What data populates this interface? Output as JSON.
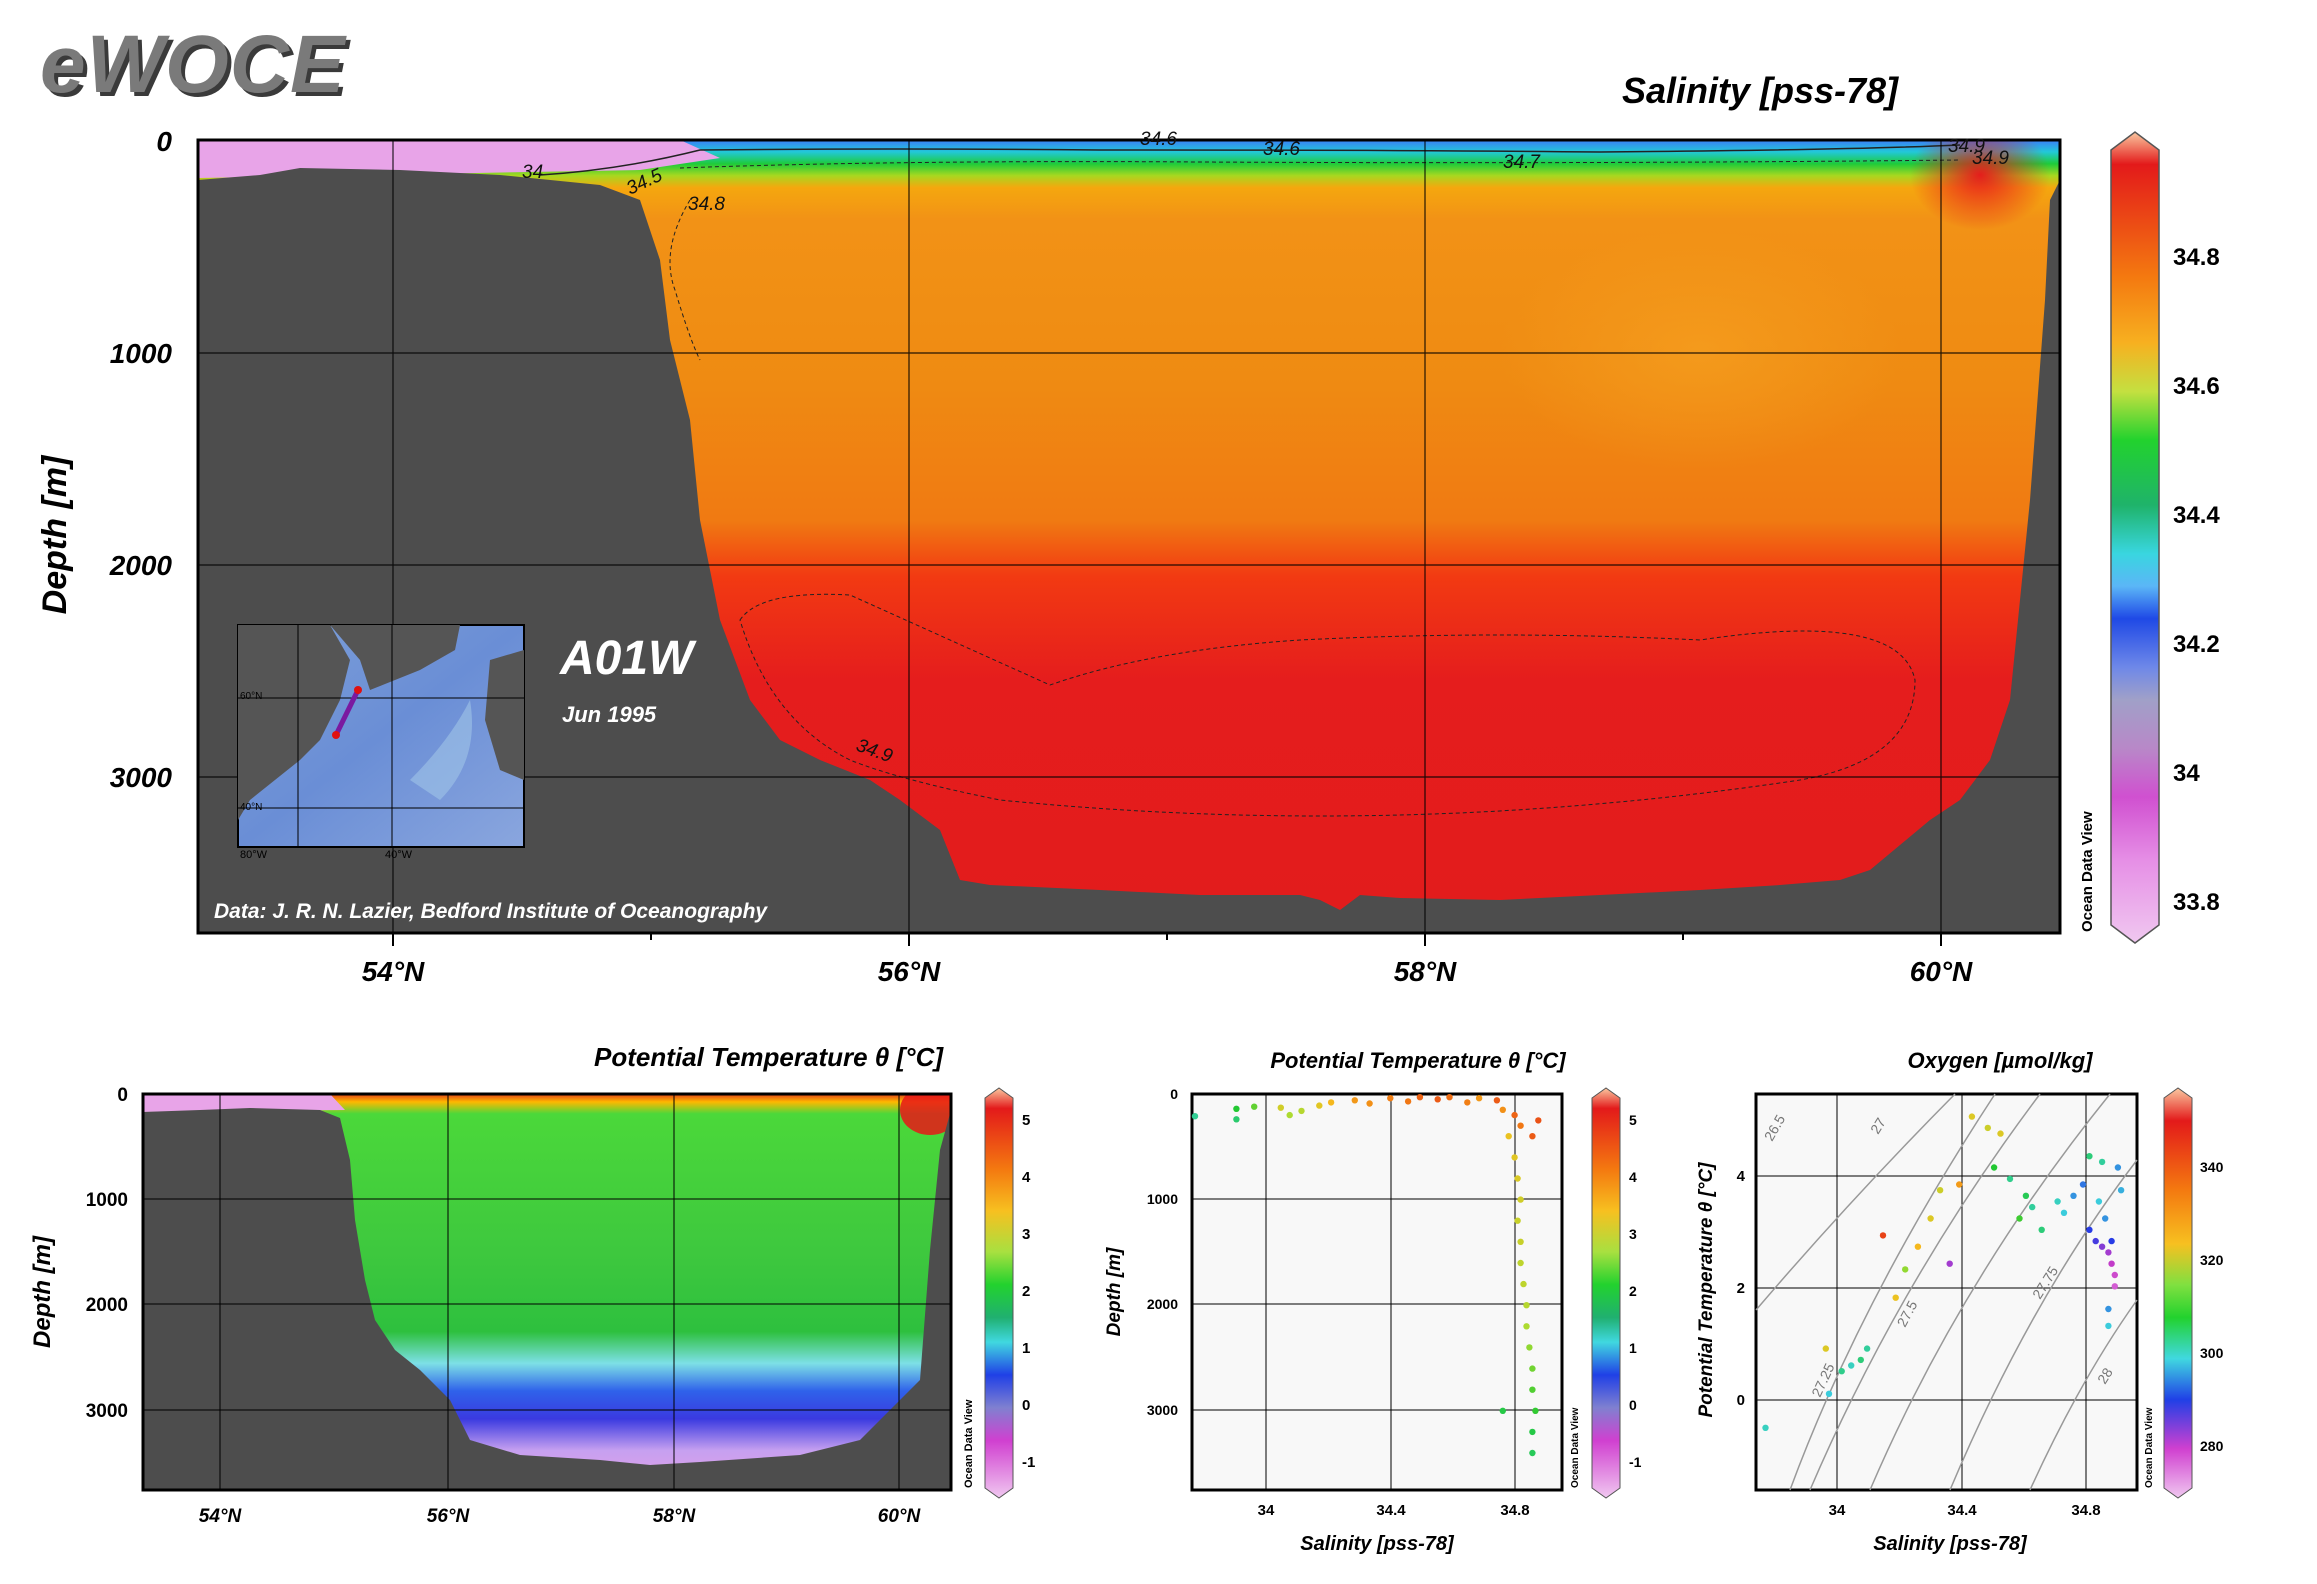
{
  "brand": "eWOCE",
  "colors": {
    "land": "#4d4d4d",
    "plot_bg": "#f8f8f8"
  },
  "main_section": {
    "title": "Salinity [pss-78]",
    "ylabel": "Depth [m]",
    "y_ticks": [
      "0",
      "1000",
      "2000",
      "3000"
    ],
    "x_ticks": [
      "54°N",
      "56°N",
      "58°N",
      "60°N"
    ],
    "section_label": "A01W",
    "section_date": "Jun 1995",
    "credit": "Data: J. R. N. Lazier, Bedford Institute of Oceanography",
    "contour_labels": [
      "34",
      "34.5",
      "34.6",
      "34.7",
      "34.8",
      "34.9",
      "34.9",
      "34.6",
      "34.9"
    ],
    "colorbar_ticks": [
      "34.8",
      "34.6",
      "34.4",
      "34.2",
      "34",
      "33.8"
    ],
    "watermark": "Ocean Data View",
    "inset_map": {
      "lat_labels": [
        "60°N",
        "40°N"
      ],
      "lon_labels": [
        "80°W",
        "40°W"
      ]
    }
  },
  "theta_section": {
    "title": "Potential Temperature θ [°C]",
    "ylabel": "Depth [m]",
    "y_ticks": [
      "0",
      "1000",
      "2000",
      "3000"
    ],
    "x_ticks": [
      "54°N",
      "56°N",
      "58°N",
      "60°N"
    ],
    "colorbar_ticks": [
      "5",
      "4",
      "3",
      "2",
      "1",
      "0",
      "-1"
    ],
    "watermark": "Ocean Data View"
  },
  "profile_plot": {
    "title": "Potential Temperature θ [°C]",
    "ylabel": "Depth [m]",
    "xlabel": "Salinity [pss-78]",
    "y_ticks": [
      "0",
      "1000",
      "2000",
      "3000"
    ],
    "x_ticks": [
      "34",
      "34.4",
      "34.8"
    ],
    "colorbar_ticks": [
      "5",
      "4",
      "3",
      "2",
      "1",
      "0",
      "-1"
    ],
    "watermark": "Ocean Data View"
  },
  "ts_plot": {
    "title": "Oxygen [µmol/kg]",
    "ylabel": "Potential Temperature θ [°C]",
    "xlabel": "Salinity [pss-78]",
    "y_ticks": [
      "4",
      "2",
      "0"
    ],
    "x_ticks": [
      "34",
      "34.4",
      "34.8"
    ],
    "isopycnal_labels": [
      "26.5",
      "27",
      "27.25",
      "27.5",
      "27.75",
      "28"
    ],
    "colorbar_ticks": [
      "340",
      "320",
      "300",
      "280"
    ],
    "watermark": "Ocean Data View"
  },
  "chart_data": [
    {
      "type": "heatmap",
      "title": "Salinity [pss-78]",
      "xlabel": "",
      "ylabel": "Depth [m]",
      "xlim": [
        53.3,
        60.5
      ],
      "ylim": [
        3750,
        0
      ],
      "x_ticks": [
        54,
        56,
        58,
        60
      ],
      "y_ticks": [
        0,
        1000,
        2000,
        3000
      ],
      "colorbar": {
        "min": 33.7,
        "max": 35.0,
        "ticks": [
          34.8,
          34.6,
          34.4,
          34.2,
          34,
          33.8
        ]
      },
      "contours": [
        34,
        34.5,
        34.6,
        34.7,
        34.8,
        34.9
      ]
    },
    {
      "type": "heatmap",
      "title": "Potential Temperature θ [°C]",
      "xlabel": "",
      "ylabel": "Depth [m]",
      "xlim": [
        53.3,
        60.5
      ],
      "ylim": [
        3750,
        0
      ],
      "x_ticks": [
        54,
        56,
        58,
        60
      ],
      "y_ticks": [
        0,
        1000,
        2000,
        3000
      ],
      "colorbar": {
        "min": -1.6,
        "max": 5.6,
        "ticks": [
          5,
          4,
          3,
          2,
          1,
          0,
          -1
        ]
      }
    },
    {
      "type": "scatter",
      "title": "Potential Temperature θ [°C]",
      "xlabel": "Salinity [pss-78]",
      "ylabel": "Depth [m]",
      "xlim": [
        33.75,
        35.0
      ],
      "ylim": [
        3750,
        0
      ],
      "color_variable": "Potential Temperature θ [°C]",
      "points": [
        [
          33.76,
          210,
          1.5
        ],
        [
          33.9,
          140,
          2.0
        ],
        [
          33.9,
          240,
          1.7
        ],
        [
          33.96,
          120,
          2.4
        ],
        [
          34.05,
          130,
          3.3
        ],
        [
          34.08,
          200,
          2.9
        ],
        [
          34.12,
          160,
          3.0
        ],
        [
          34.18,
          110,
          3.5
        ],
        [
          34.22,
          80,
          3.8
        ],
        [
          34.3,
          60,
          4.2
        ],
        [
          34.35,
          90,
          4.3
        ],
        [
          34.42,
          40,
          4.5
        ],
        [
          34.48,
          70,
          4.6
        ],
        [
          34.52,
          30,
          4.8
        ],
        [
          34.58,
          50,
          4.9
        ],
        [
          34.62,
          30,
          4.7
        ],
        [
          34.68,
          80,
          4.5
        ],
        [
          34.72,
          40,
          4.2
        ],
        [
          34.78,
          60,
          4.9
        ],
        [
          34.8,
          150,
          4.3
        ],
        [
          34.84,
          200,
          4.8
        ],
        [
          34.86,
          300,
          4.6
        ],
        [
          34.9,
          400,
          4.9
        ],
        [
          34.92,
          250,
          5.0
        ],
        [
          34.82,
          400,
          3.6
        ],
        [
          34.84,
          600,
          3.5
        ],
        [
          34.85,
          800,
          3.4
        ],
        [
          34.86,
          1000,
          3.3
        ],
        [
          34.85,
          1200,
          3.2
        ],
        [
          34.86,
          1400,
          3.2
        ],
        [
          34.86,
          1600,
          3.1
        ],
        [
          34.87,
          1800,
          3.1
        ],
        [
          34.88,
          2000,
          3.0
        ],
        [
          34.88,
          2200,
          2.9
        ],
        [
          34.89,
          2400,
          2.7
        ],
        [
          34.9,
          2600,
          2.5
        ],
        [
          34.9,
          2800,
          2.3
        ],
        [
          34.91,
          3000,
          2.1
        ],
        [
          34.9,
          3200,
          1.9
        ],
        [
          34.9,
          3400,
          1.8
        ],
        [
          34.8,
          3000,
          1.9
        ]
      ]
    },
    {
      "type": "scatter",
      "title": "Oxygen [µmol/kg]",
      "xlabel": "Salinity [pss-78]",
      "ylabel": "Potential Temperature θ [°C]",
      "xlim": [
        33.75,
        34.95
      ],
      "ylim": [
        -1.6,
        5.4
      ],
      "color_variable": "Oxygen [µmol/kg]",
      "points": [
        [
          33.78,
          -0.5,
          302
        ],
        [
          33.98,
          0.1,
          300
        ],
        [
          34.02,
          0.5,
          305
        ],
        [
          34.05,
          0.6,
          302
        ],
        [
          34.08,
          0.7,
          306
        ],
        [
          34.1,
          0.9,
          304
        ],
        [
          33.97,
          0.9,
          326
        ],
        [
          34.15,
          2.9,
          345
        ],
        [
          34.19,
          1.8,
          328
        ],
        [
          34.22,
          2.3,
          318
        ],
        [
          34.26,
          2.7,
          330
        ],
        [
          34.3,
          3.2,
          326
        ],
        [
          34.33,
          3.7,
          324
        ],
        [
          34.39,
          3.8,
          334
        ],
        [
          34.36,
          2.4,
          282
        ],
        [
          34.43,
          5.0,
          326
        ],
        [
          34.48,
          4.8,
          324
        ],
        [
          34.52,
          4.7,
          326
        ],
        [
          34.5,
          4.1,
          310
        ],
        [
          34.55,
          3.9,
          305
        ],
        [
          34.58,
          3.2,
          312
        ],
        [
          34.6,
          3.6,
          308
        ],
        [
          34.62,
          3.4,
          304
        ],
        [
          34.65,
          3.0,
          306
        ],
        [
          34.7,
          3.5,
          302
        ],
        [
          34.72,
          3.3,
          300
        ],
        [
          34.75,
          3.6,
          296
        ],
        [
          34.78,
          3.8,
          294
        ],
        [
          34.8,
          3.0,
          290
        ],
        [
          34.82,
          2.8,
          288
        ],
        [
          34.84,
          2.7,
          284
        ],
        [
          34.86,
          2.6,
          282
        ],
        [
          34.87,
          2.4,
          280
        ],
        [
          34.88,
          2.2,
          278
        ],
        [
          34.88,
          2.0,
          276
        ],
        [
          34.87,
          2.8,
          290
        ],
        [
          34.85,
          3.2,
          296
        ],
        [
          34.83,
          3.5,
          300
        ],
        [
          34.86,
          1.6,
          296
        ],
        [
          34.86,
          1.3,
          300
        ],
        [
          34.89,
          4.1,
          296
        ],
        [
          34.9,
          3.7,
          298
        ],
        [
          34.84,
          4.2,
          304
        ],
        [
          34.8,
          4.3,
          306
        ]
      ]
    }
  ]
}
